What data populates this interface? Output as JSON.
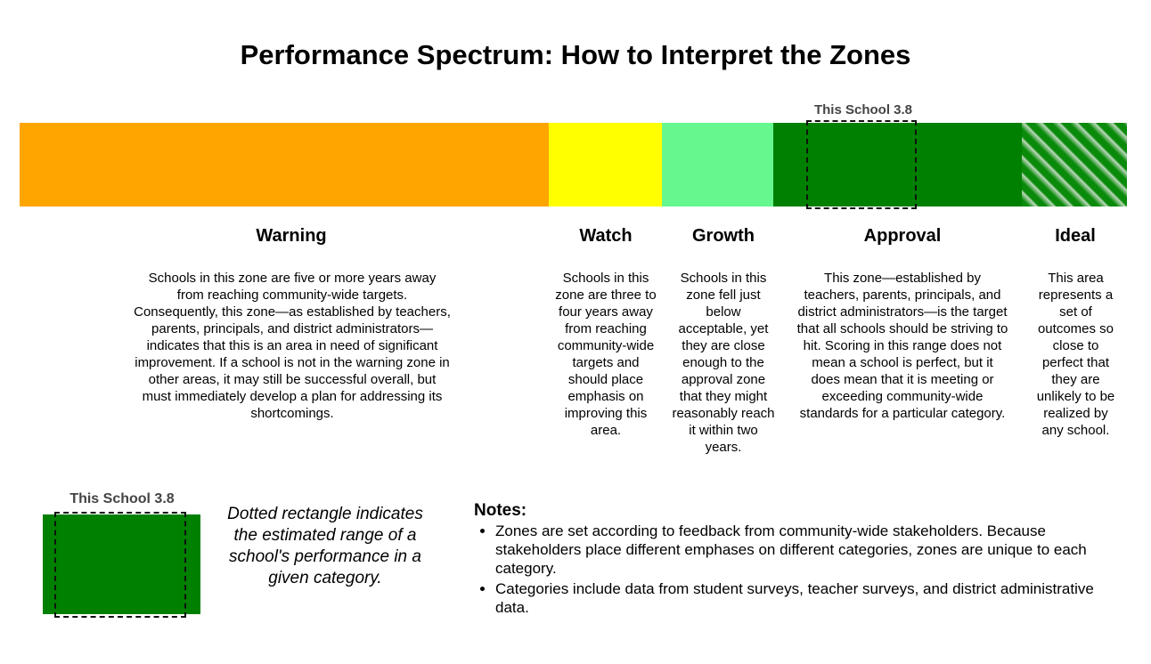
{
  "title": "Performance Spectrum: How to Interpret the Zones",
  "marker_label": "This School 3.8",
  "zones": [
    {
      "name": "Warning",
      "color": "#ffa500",
      "description": "Schools in this zone are five or more years away from reaching community-wide targets. Consequently, this zone—as established by teachers, parents, principals, and district administrators—indicates that this is an area in need of significant improvement. If a school is not in the warning zone in other areas, it may still be successful overall, but must immediately develop a plan for addressing its shortcomings."
    },
    {
      "name": "Watch",
      "color": "#ffff00",
      "description": "Schools in this zone are three to four years away from reaching community-wide targets and should place emphasis on improving this area."
    },
    {
      "name": "Growth",
      "color": "#66f78f",
      "description": "Schools in this zone fell just below acceptable, yet they are close enough to the approval zone that they might reasonably reach it within two years."
    },
    {
      "name": "Approval",
      "color": "#008000",
      "description": "This zone—established by teachers, parents, principals, and district administrators—is the target that all schools should be striving to hit. Scoring in this range does not mean a school is perfect, but it does mean that it is meeting or exceeding community-wide standards for a particular category."
    },
    {
      "name": "Ideal",
      "color": "#008000",
      "description": "This area represents a set of outcomes so close to perfect that they are unlikely to be realized by any school."
    }
  ],
  "legend": {
    "label": "This School 3.8",
    "text": "Dotted rectangle indicates the estimated range of a school's performance in a given category."
  },
  "notes": {
    "title": "Notes:",
    "items": [
      "Zones are set according to feedback from community-wide stakeholders. Because stakeholders place different emphases on different categories, zones are unique to each category.",
      "Categories include data from student surveys, teacher surveys, and district administrative data."
    ]
  }
}
